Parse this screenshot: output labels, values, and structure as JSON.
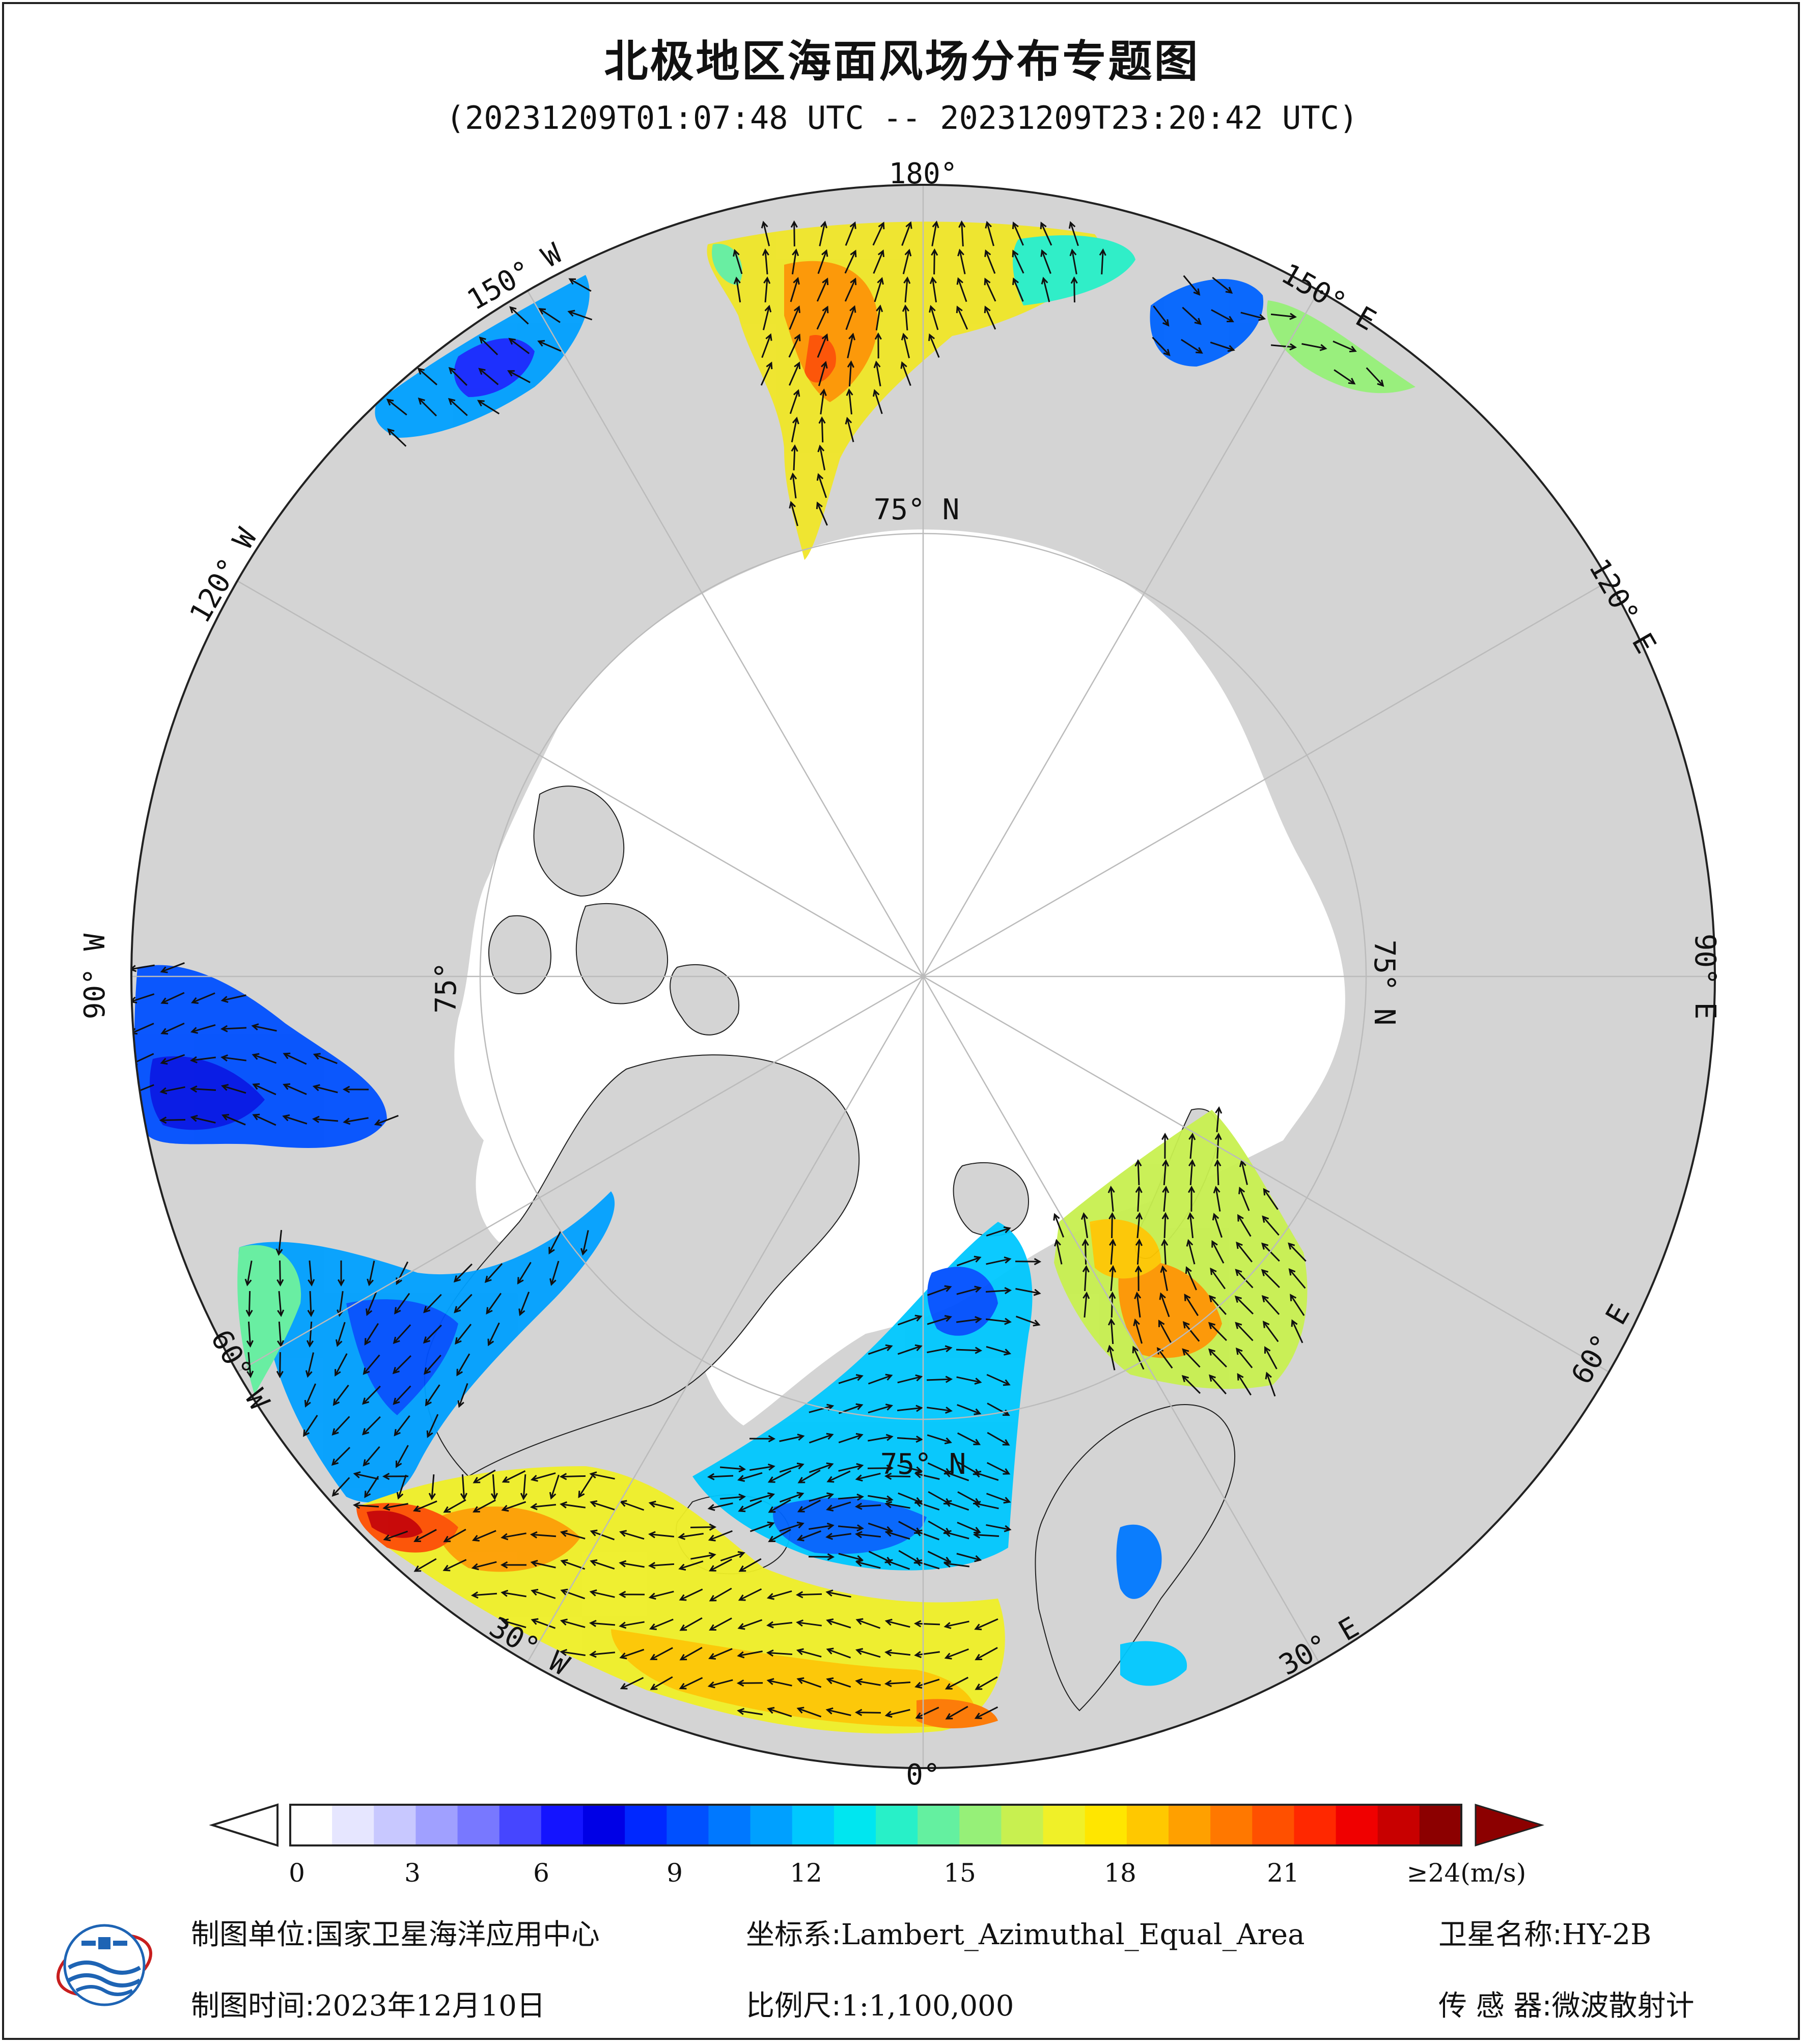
{
  "title": "北极地区海面风场分布专题图",
  "subtitle": "(20231209T01:07:48 UTC -- 20231209T23:20:42 UTC)",
  "map_labels": {
    "lon_180": "180°",
    "lon_150w": "150° W",
    "lon_150e": "150° E",
    "lon_120w": "120° W",
    "lon_120e": "120° E",
    "lon_90w": "90° W",
    "lon_90e": "90° E",
    "lon_60w": "60° W",
    "lon_60e": "60° E",
    "lon_30w": "30° W",
    "lon_30e": "30° E",
    "lon_0": "0°",
    "lat_75n_top": "75° N",
    "lat_75n_right": "75° N",
    "lat_75n_left": "75°",
    "lat_75n_bottom": "75° N"
  },
  "colorbar": {
    "ticks": [
      "0",
      "3",
      "6",
      "9",
      "12",
      "15",
      "18",
      "21",
      "≥24(m/s)"
    ],
    "colors": [
      "#ffffff",
      "#e6e6ff",
      "#c8c8ff",
      "#a0a0ff",
      "#7878ff",
      "#4646ff",
      "#1414ff",
      "#0000e6",
      "#0028ff",
      "#0050ff",
      "#0078ff",
      "#00a0ff",
      "#00c8ff",
      "#00e6f0",
      "#28f0c8",
      "#64f0a0",
      "#96f078",
      "#c8f050",
      "#f0f028",
      "#ffe600",
      "#ffc800",
      "#ffa000",
      "#ff7800",
      "#ff5000",
      "#ff2800",
      "#f00000",
      "#c80000",
      "#8c0000"
    ]
  },
  "colors": {
    "land": "#d4d4d4",
    "ice": "#ffffff",
    "grid": "#bbbbbb"
  },
  "footer": {
    "unit_label": "制图单位:",
    "unit_value": "国家卫星海洋应用中心",
    "coord_label": "坐标系:",
    "coord_value": "Lambert_Azimuthal_Equal_Area",
    "sat_label": "卫星名称:",
    "sat_value": "HY-2B",
    "time_label": "制图时间:",
    "time_value": "2023年12月10日",
    "scale_label": "比例尺:",
    "scale_value": "1:1,100,000",
    "sensor_label": "传 感 器:",
    "sensor_value": "微波散射计"
  }
}
